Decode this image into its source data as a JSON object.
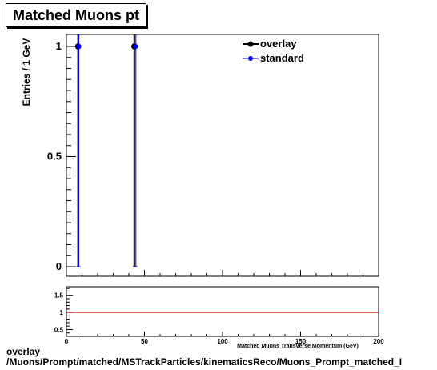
{
  "chart_data": [
    {
      "type": "scatter",
      "title": "Matched Muons pt",
      "ylabel": "Entries / 1 GeV",
      "xlabel": "Matched Muons Transverse Momentum (GeV)",
      "xlim": [
        0,
        200
      ],
      "ylim": [
        0,
        1.05
      ],
      "y_ticks": [
        "0",
        "0.5",
        "1"
      ],
      "x_ticks": [
        "0",
        "50",
        "100",
        "150",
        "200"
      ],
      "legend_position": "top-right",
      "series": [
        {
          "name": "overlay",
          "color": "#000000",
          "x": [
            7.5,
            43.5
          ],
          "y": [
            1,
            1
          ]
        },
        {
          "name": "standard",
          "color": "#0000ff",
          "x": [
            8.0,
            44.5
          ],
          "y": [
            1,
            1
          ]
        }
      ]
    },
    {
      "type": "line",
      "xlim": [
        0,
        200
      ],
      "ylim": [
        0.3,
        1.75
      ],
      "y_ticks": [
        "0.5",
        "1",
        "1.5"
      ],
      "x_ticks": [
        "0",
        "50",
        "100",
        "150",
        "200"
      ],
      "series": [
        {
          "color": "#cc0000",
          "x": [
            0,
            200
          ],
          "y": [
            1,
            1
          ]
        }
      ]
    }
  ],
  "footer": {
    "line1": "overlay",
    "line2": "/Muons/Prompt/matched/MSTrackParticles/kinematicsReco/Muons_Prompt_matched_I"
  }
}
